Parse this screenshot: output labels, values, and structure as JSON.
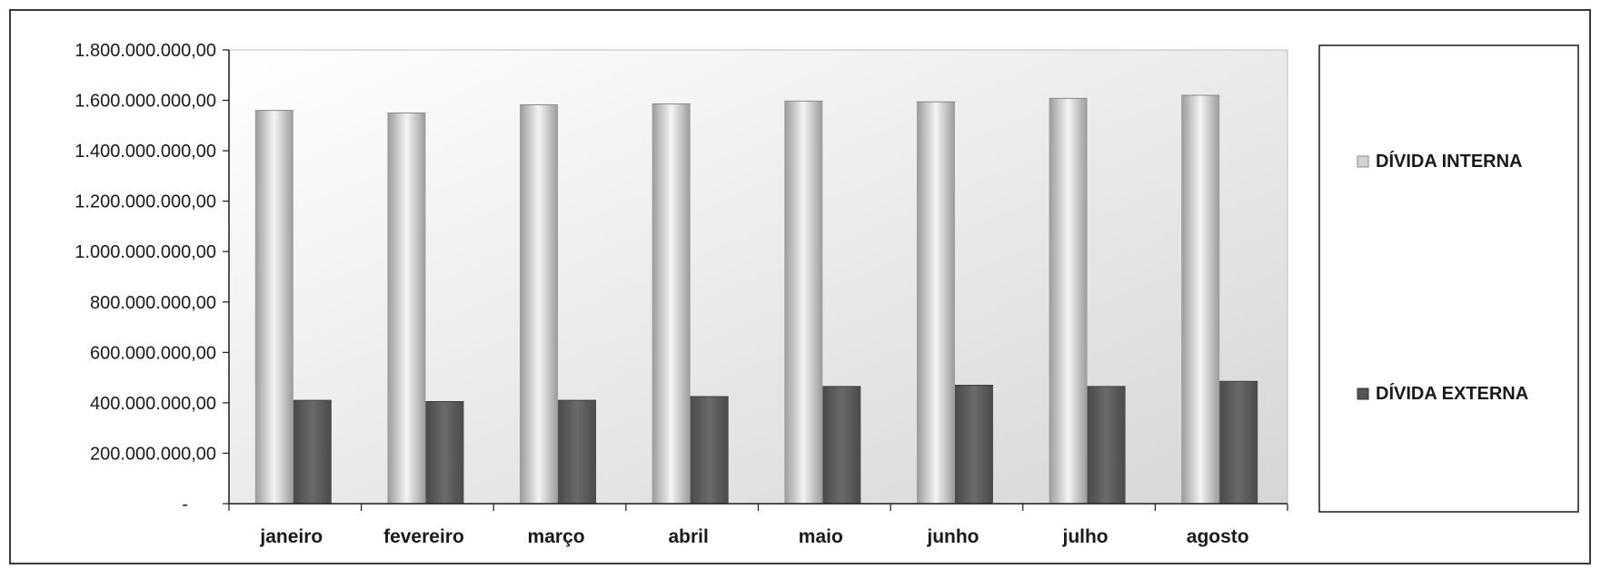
{
  "chart_data": {
    "type": "bar",
    "categories": [
      "janeiro",
      "fevereiro",
      "março",
      "abril",
      "maio",
      "junho",
      "julho",
      "agosto"
    ],
    "series": [
      {
        "name": "DÍVIDA INTERNA",
        "color": "#b0b0b0",
        "values": [
          1560000000,
          1550000000,
          1582000000,
          1586000000,
          1597000000,
          1594000000,
          1608000000,
          1620000000
        ]
      },
      {
        "name": "DÍVIDA EXTERNA",
        "color": "#5e5e5e",
        "values": [
          410000000,
          405000000,
          410000000,
          425000000,
          465000000,
          470000000,
          465000000,
          485000000
        ]
      }
    ],
    "ylim": [
      0,
      1800000000
    ],
    "yticks": [
      0,
      200000000,
      400000000,
      600000000,
      800000000,
      1000000000,
      1200000000,
      1400000000,
      1600000000,
      1800000000
    ],
    "ytick_labels": [
      "-",
      "200.000.000,00",
      "400.000.000,00",
      "600.000.000,00",
      "800.000.000,00",
      "1.000.000.000,00",
      "1.200.000.000,00",
      "1.400.000.000,00",
      "1.600.000.000,00",
      "1.800.000.000,00"
    ],
    "title": "",
    "xlabel": "",
    "ylabel": "",
    "grid": false,
    "legend_position": "right"
  }
}
